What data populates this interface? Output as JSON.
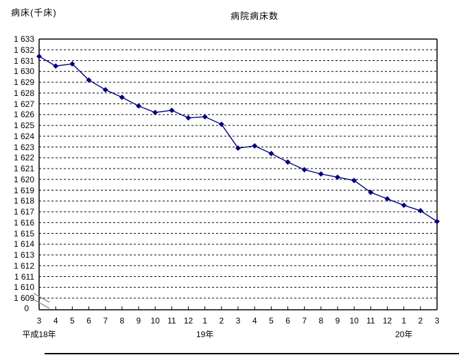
{
  "chart_data": {
    "type": "line",
    "title": "病院病床数",
    "y_axis_title": "病床(千床)",
    "x": [
      "3",
      "4",
      "5",
      "6",
      "7",
      "8",
      "9",
      "10",
      "11",
      "12",
      "1",
      "2",
      "3",
      "4",
      "5",
      "6",
      "7",
      "8",
      "9",
      "10",
      "11",
      "12",
      "1",
      "2",
      "3"
    ],
    "year_labels": [
      {
        "label": "平成18年",
        "month_index": 0
      },
      {
        "label": "19年",
        "month_index": 10
      },
      {
        "label": "20年",
        "month_index": 22
      }
    ],
    "series": [
      {
        "name": "病院病床数",
        "color": "#000080",
        "values": [
          1631.4,
          1630.5,
          1630.7,
          1629.2,
          1628.3,
          1627.6,
          1626.8,
          1626.2,
          1626.4,
          1625.7,
          1625.8,
          1625.1,
          1622.9,
          1623.1,
          1622.4,
          1621.6,
          1620.9,
          1620.5,
          1620.2,
          1619.9,
          1618.8,
          1618.2,
          1617.6,
          1617.1,
          1616.1
        ]
      }
    ],
    "ylim": [
      1609,
      1633
    ],
    "y_tick_step": 1,
    "y_ticks": [
      "1 633",
      "1 632",
      "1 631",
      "1 630",
      "1 629",
      "1 628",
      "1 627",
      "1 626",
      "1 625",
      "1 624",
      "1 623",
      "1 622",
      "1 621",
      "1 620",
      "1 619",
      "1 618",
      "1 617",
      "1 616",
      "1 615",
      "1 614",
      "1 613",
      "1 612",
      "1 611",
      "1 610",
      "1 609"
    ],
    "y_axis_break": true,
    "y_zero_label": "0",
    "grid": "horizontal-dashed",
    "marker": "diamond",
    "legend": "none"
  }
}
